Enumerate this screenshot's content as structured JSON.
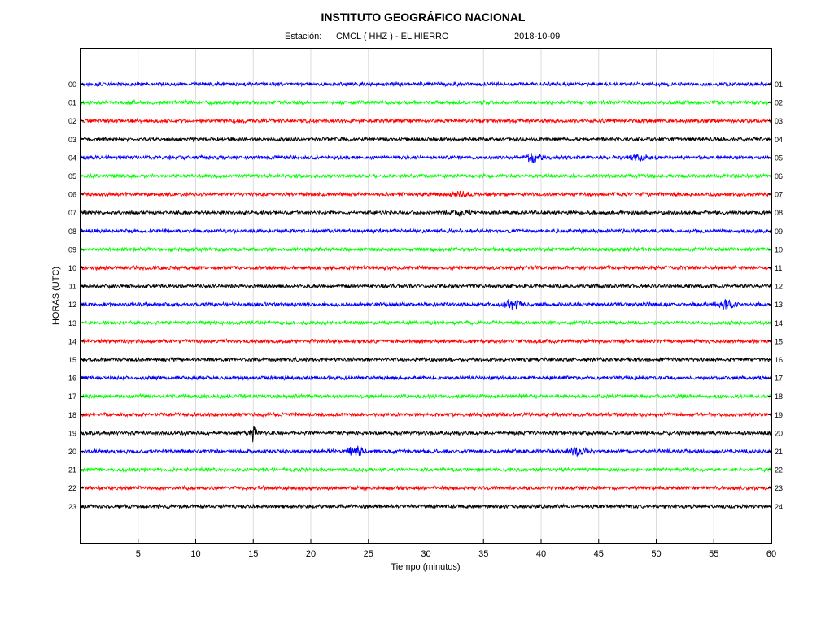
{
  "chart_data": {
    "type": "line",
    "title": "INSTITUTO GEOGRÁFICO NACIONAL",
    "subtitle": {
      "station_label": "Estación:",
      "station": "CMCL ( HHZ ) - EL HIERRO",
      "date": "2018-10-09"
    },
    "xlabel": "Tiempo (minutos)",
    "ylabel": "HORAS (UTC)",
    "xlim": [
      0,
      60
    ],
    "x_ticks": [
      "5",
      "10",
      "15",
      "20",
      "25",
      "30",
      "35",
      "40",
      "45",
      "50",
      "55",
      "60"
    ],
    "grid": true,
    "left_labels": [
      "00",
      "01",
      "02",
      "03",
      "04",
      "05",
      "06",
      "07",
      "08",
      "09",
      "10",
      "11",
      "12",
      "13",
      "14",
      "15",
      "16",
      "17",
      "18",
      "19",
      "20",
      "21",
      "22",
      "23"
    ],
    "right_labels": [
      "01",
      "02",
      "03",
      "04",
      "05",
      "06",
      "07",
      "08",
      "09",
      "10",
      "11",
      "12",
      "13",
      "14",
      "15",
      "16",
      "17",
      "18",
      "19",
      "20",
      "21",
      "22",
      "23",
      "24"
    ],
    "colors": [
      "#0000ff",
      "#00ff00",
      "#ff0000",
      "#000000"
    ],
    "events": [
      {
        "hour": 4,
        "minute": 39.3,
        "amplitude": 2.2
      },
      {
        "hour": 4,
        "minute": 48.5,
        "amplitude": 1.3
      },
      {
        "hour": 6,
        "minute": 33.0,
        "amplitude": 1.3
      },
      {
        "hour": 7,
        "minute": 33.0,
        "amplitude": 1.4
      },
      {
        "hour": 12,
        "minute": 37.5,
        "amplitude": 2.0
      },
      {
        "hour": 12,
        "minute": 56.0,
        "amplitude": 2.0
      },
      {
        "hour": 19,
        "minute": 15.0,
        "amplitude": 4.5
      },
      {
        "hour": 20,
        "minute": 23.9,
        "amplitude": 2.6
      },
      {
        "hour": 20,
        "minute": 43.2,
        "amplitude": 1.8
      }
    ]
  }
}
